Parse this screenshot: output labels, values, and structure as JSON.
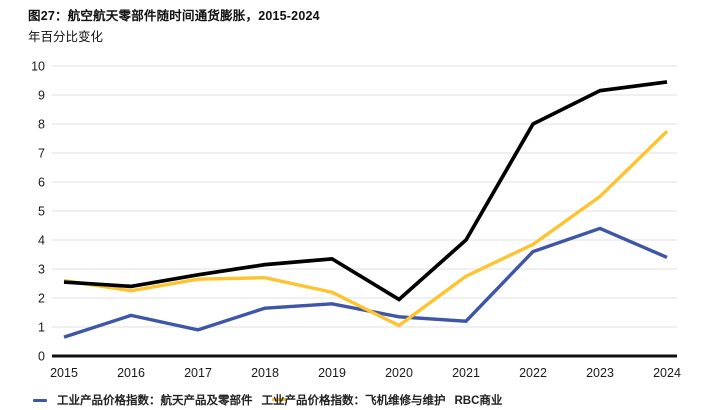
{
  "header": {
    "title": "图27：航空航天零部件随时间通货膨胀，2015-2024",
    "subtitle": "年百分比变化"
  },
  "chart_data": {
    "type": "line",
    "x": [
      "2015",
      "2016",
      "2017",
      "2018",
      "2019",
      "2020",
      "2021",
      "2022",
      "2023",
      "2024"
    ],
    "series": [
      {
        "name": "工业产品价格指数：航天产品及零部件",
        "color": "#3E56A8",
        "values": [
          0.65,
          1.4,
          0.9,
          1.65,
          1.8,
          1.35,
          1.2,
          3.6,
          4.4,
          3.4
        ]
      },
      {
        "name": "工业产品价格指数：飞机维修与维护",
        "color": "#FDC42F",
        "values": [
          2.6,
          2.25,
          2.65,
          2.7,
          2.2,
          1.05,
          2.75,
          3.85,
          5.5,
          7.75
        ]
      },
      {
        "name": "RBC商业",
        "color": "#000000",
        "values": [
          2.55,
          2.4,
          2.8,
          3.15,
          3.35,
          1.95,
          4.0,
          8.0,
          9.15,
          9.45
        ]
      }
    ],
    "title": "图27：航空航天零部件随时间通货膨胀，2015-2024",
    "ylabel": "年百分比变化",
    "xlabel": "",
    "ylim": [
      0,
      10
    ],
    "ytick_step": 1,
    "grid": true,
    "legend_position": "bottom"
  },
  "legend": {
    "items": [
      {
        "label": "工业产品价格指数：航天产品及零部件",
        "color": "#3E56A8"
      },
      {
        "label": "工业产品价格指数：飞机维修与维护",
        "color": "#FDC42F"
      }
    ],
    "source": "RBC商业"
  },
  "colors": {
    "grid": "#E7E7E7",
    "axis": "#111111",
    "text": "#1A1A1A",
    "background": "#FFFFFF"
  }
}
